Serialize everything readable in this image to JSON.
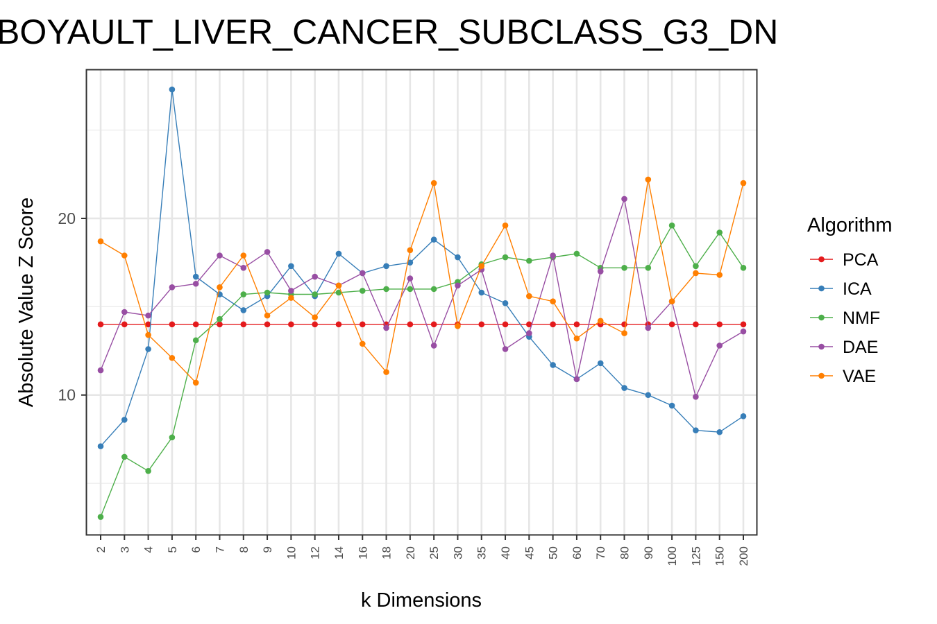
{
  "chart_data": {
    "type": "line",
    "title": "BOYAULT_LIVER_CANCER_SUBCLASS_G3_DN",
    "xlabel": "k Dimensions",
    "ylabel": "Absolute Value Z Score",
    "categories": [
      "2",
      "3",
      "4",
      "5",
      "6",
      "7",
      "8",
      "9",
      "10",
      "12",
      "14",
      "16",
      "18",
      "20",
      "25",
      "30",
      "35",
      "40",
      "45",
      "50",
      "60",
      "70",
      "80",
      "90",
      "100",
      "125",
      "150",
      "200"
    ],
    "y_ticks": [
      10,
      20
    ],
    "ylim": [
      2.1,
      28.4
    ],
    "grid": true,
    "legend": {
      "title": "Algorithm",
      "position": "right"
    },
    "series": [
      {
        "name": "PCA",
        "color": "#e41a1c",
        "values": [
          14,
          14,
          14,
          14,
          14,
          14,
          14,
          14,
          14,
          14,
          14,
          14,
          14,
          14,
          14,
          14,
          14,
          14,
          14,
          14,
          14,
          14,
          14,
          14,
          14,
          14,
          14,
          14
        ]
      },
      {
        "name": "ICA",
        "color": "#377eb8",
        "values": [
          7.1,
          8.6,
          12.6,
          27.3,
          16.7,
          15.7,
          14.8,
          15.6,
          17.3,
          15.6,
          18,
          16.9,
          17.3,
          17.5,
          18.8,
          17.8,
          15.8,
          15.2,
          13.3,
          11.7,
          10.9,
          11.8,
          10.4,
          10.0,
          9.4,
          8.0,
          7.9,
          8.8
        ]
      },
      {
        "name": "NMF",
        "color": "#4daf4a",
        "values": [
          3.1,
          6.5,
          5.7,
          7.6,
          13.1,
          14.3,
          15.7,
          15.8,
          15.7,
          15.7,
          15.8,
          15.9,
          16.0,
          16.0,
          16.0,
          16.4,
          17.4,
          17.8,
          17.6,
          17.8,
          18.0,
          17.2,
          17.2,
          17.2,
          19.6,
          17.3,
          19.2,
          17.2
        ]
      },
      {
        "name": "DAE",
        "color": "#984ea3",
        "values": [
          11.4,
          14.7,
          14.5,
          16.1,
          16.3,
          17.9,
          17.2,
          18.1,
          15.9,
          16.7,
          16.2,
          16.9,
          13.8,
          16.6,
          12.8,
          16.2,
          17.1,
          12.6,
          13.5,
          17.9,
          10.9,
          17.0,
          21.1,
          13.8,
          15.3,
          9.9,
          12.8,
          13.6
        ]
      },
      {
        "name": "VAE",
        "color": "#ff7f00",
        "values": [
          18.7,
          17.9,
          13.4,
          12.1,
          10.7,
          16.1,
          17.9,
          14.5,
          15.5,
          14.4,
          16.2,
          12.9,
          11.3,
          18.2,
          22.0,
          13.9,
          17.3,
          19.6,
          15.6,
          15.3,
          13.2,
          14.2,
          13.5,
          22.2,
          15.3,
          16.9,
          16.8,
          22.0
        ]
      }
    ]
  }
}
